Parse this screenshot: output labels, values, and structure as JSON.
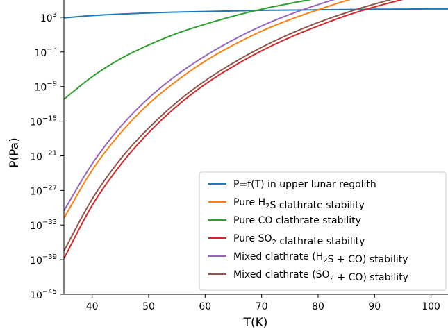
{
  "chart_data": {
    "type": "line",
    "title": "",
    "xlabel": "T(K)",
    "ylabel": "P(Pa)",
    "xlim": [
      35,
      103
    ],
    "ylim_log10": [
      -45,
      6
    ],
    "y_scale": "log",
    "grid": false,
    "legend_position": "lower-right",
    "x_ticks": [
      {
        "value": 40,
        "label": "40"
      },
      {
        "value": 50,
        "label": "50"
      },
      {
        "value": 60,
        "label": "60"
      },
      {
        "value": 70,
        "label": "70"
      },
      {
        "value": 80,
        "label": "80"
      },
      {
        "value": 90,
        "label": "90"
      },
      {
        "value": 100,
        "label": "100"
      }
    ],
    "y_ticks": [
      {
        "exp": 3,
        "base": "10",
        "sup": "3"
      },
      {
        "exp": -3,
        "base": "10",
        "sup": "−3"
      },
      {
        "exp": -9,
        "base": "10",
        "sup": "−9"
      },
      {
        "exp": -15,
        "base": "10",
        "sup": "−15"
      },
      {
        "exp": -21,
        "base": "10",
        "sup": "−21"
      },
      {
        "exp": -27,
        "base": "10",
        "sup": "−27"
      },
      {
        "exp": -33,
        "base": "10",
        "sup": "−33"
      },
      {
        "exp": -39,
        "base": "10",
        "sup": "−39"
      },
      {
        "exp": -45,
        "base": "10",
        "sup": "−45"
      }
    ],
    "x": [
      35,
      40,
      45,
      50,
      55,
      60,
      65,
      70,
      75,
      80,
      85,
      90,
      95,
      100,
      103
    ],
    "series": [
      {
        "name_parts": [
          {
            "t": "P=f(T) in upper lunar regolith"
          }
        ],
        "color": "#1f77b4",
        "log10_y": [
          2.9,
          3.3,
          3.55,
          3.75,
          3.9,
          4.0,
          4.1,
          4.2,
          4.25,
          4.3,
          4.35,
          4.4,
          4.42,
          4.45,
          4.45
        ]
      },
      {
        "name_parts": [
          {
            "t": "Pure H"
          },
          {
            "t": "2",
            "sub": true
          },
          {
            "t": "S clathrate stability"
          }
        ],
        "color": "#ff7f0e",
        "log10_y": [
          -31.8,
          -23.5,
          -17.1,
          -12.0,
          -8.0,
          -4.6,
          -1.8,
          0.6,
          2.6,
          4.3,
          5.9,
          7.2,
          8.4,
          9.5,
          10.1
        ]
      },
      {
        "name_parts": [
          {
            "t": "Pure CO clathrate stability"
          }
        ],
        "color": "#2ca02c",
        "log10_y": [
          -11.2,
          -7.3,
          -4.2,
          -1.8,
          0.2,
          1.8,
          3.2,
          4.4,
          5.4,
          6.3,
          7.0,
          7.7,
          8.3,
          8.8,
          9.1
        ]
      },
      {
        "name_parts": [
          {
            "t": "Pure SO"
          },
          {
            "t": "2",
            "sub": true
          },
          {
            "t": " clathrate stability"
          }
        ],
        "color": "#d62728",
        "log10_y": [
          -38.8,
          -29.6,
          -22.6,
          -17.0,
          -12.4,
          -8.6,
          -5.5,
          -2.8,
          -0.5,
          1.5,
          3.3,
          4.8,
          6.1,
          7.3,
          7.9
        ]
      },
      {
        "name_parts": [
          {
            "t": "Mixed clathrate (H"
          },
          {
            "t": "2",
            "sub": true
          },
          {
            "t": "S + CO) stability"
          }
        ],
        "color": "#9467bd",
        "log10_y": [
          -30.5,
          -22.4,
          -16.0,
          -11.0,
          -7.0,
          -3.7,
          -0.9,
          1.5,
          3.5,
          5.2,
          6.7,
          8.0,
          9.2,
          10.3,
          10.9
        ]
      },
      {
        "name_parts": [
          {
            "t": "Mixed clathrate (SO"
          },
          {
            "t": "2",
            "sub": true
          },
          {
            "t": " + CO) stability"
          }
        ],
        "color": "#8c564b",
        "log10_y": [
          -37.5,
          -28.5,
          -21.6,
          -16.2,
          -11.7,
          -8.0,
          -4.9,
          -2.2,
          0.1,
          2.1,
          3.8,
          5.3,
          6.6,
          7.8,
          8.4
        ]
      }
    ]
  }
}
